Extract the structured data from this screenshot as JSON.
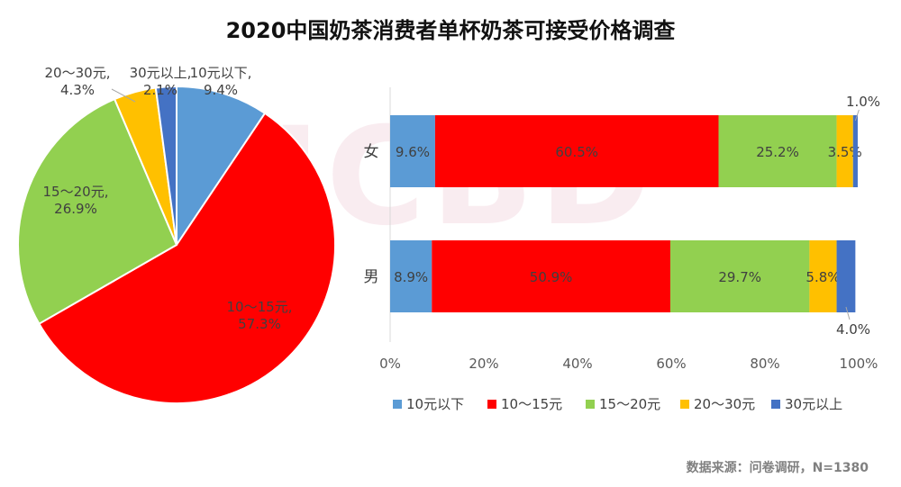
{
  "title": "2020中国奶茶消费者单杯奶茶可接受价格调查",
  "source": "数据来源：问卷调研，N=1380",
  "watermark": "ICBD",
  "colors": {
    "10元以下": "#5b9bd5",
    "10～15元": "#ff0000",
    "15～20元": "#92d050",
    "20～30元": "#ffc000",
    "30元以上": "#4472c4"
  },
  "chart_data": [
    {
      "type": "pie",
      "slices": [
        {
          "label": "10元以下",
          "value": 9.4,
          "display": "10元以下,\n9.4%"
        },
        {
          "label": "10～15元",
          "value": 57.3,
          "display": "10～15元,\n57.3%"
        },
        {
          "label": "15～20元",
          "value": 26.9,
          "display": "15～20元,\n26.9%"
        },
        {
          "label": "20～30元",
          "value": 4.3,
          "display": "20～30元,\n4.3%"
        },
        {
          "label": "30元以上",
          "value": 2.1,
          "display": "30元以上,\n2.1%"
        }
      ]
    },
    {
      "type": "bar",
      "orientation": "horizontal",
      "stacked": "percent",
      "categories": [
        "女",
        "男"
      ],
      "series": [
        {
          "name": "10元以下",
          "values": [
            9.6,
            8.9
          ],
          "labels": [
            "9.6%",
            "8.9%"
          ]
        },
        {
          "name": "10～15元",
          "values": [
            60.5,
            50.9
          ],
          "labels": [
            "60.5%",
            "50.9%"
          ]
        },
        {
          "name": "15～20元",
          "values": [
            25.2,
            29.7
          ],
          "labels": [
            "25.2%",
            "29.7%"
          ]
        },
        {
          "name": "20～30元",
          "values": [
            3.5,
            5.8
          ],
          "labels": [
            "3.5%",
            "5.8%"
          ]
        },
        {
          "name": "30元以上",
          "values": [
            1.0,
            4.0
          ],
          "labels": [
            "1.0%",
            "4.0%"
          ]
        }
      ],
      "xticks": [
        "0%",
        "20%",
        "40%",
        "60%",
        "80%",
        "100%"
      ],
      "xlim": [
        0,
        100
      ],
      "legend": {
        "placement": "bottom",
        "items": [
          "10元以下",
          "10～15元",
          "15～20元",
          "20～30元",
          "30元以上"
        ]
      }
    }
  ]
}
